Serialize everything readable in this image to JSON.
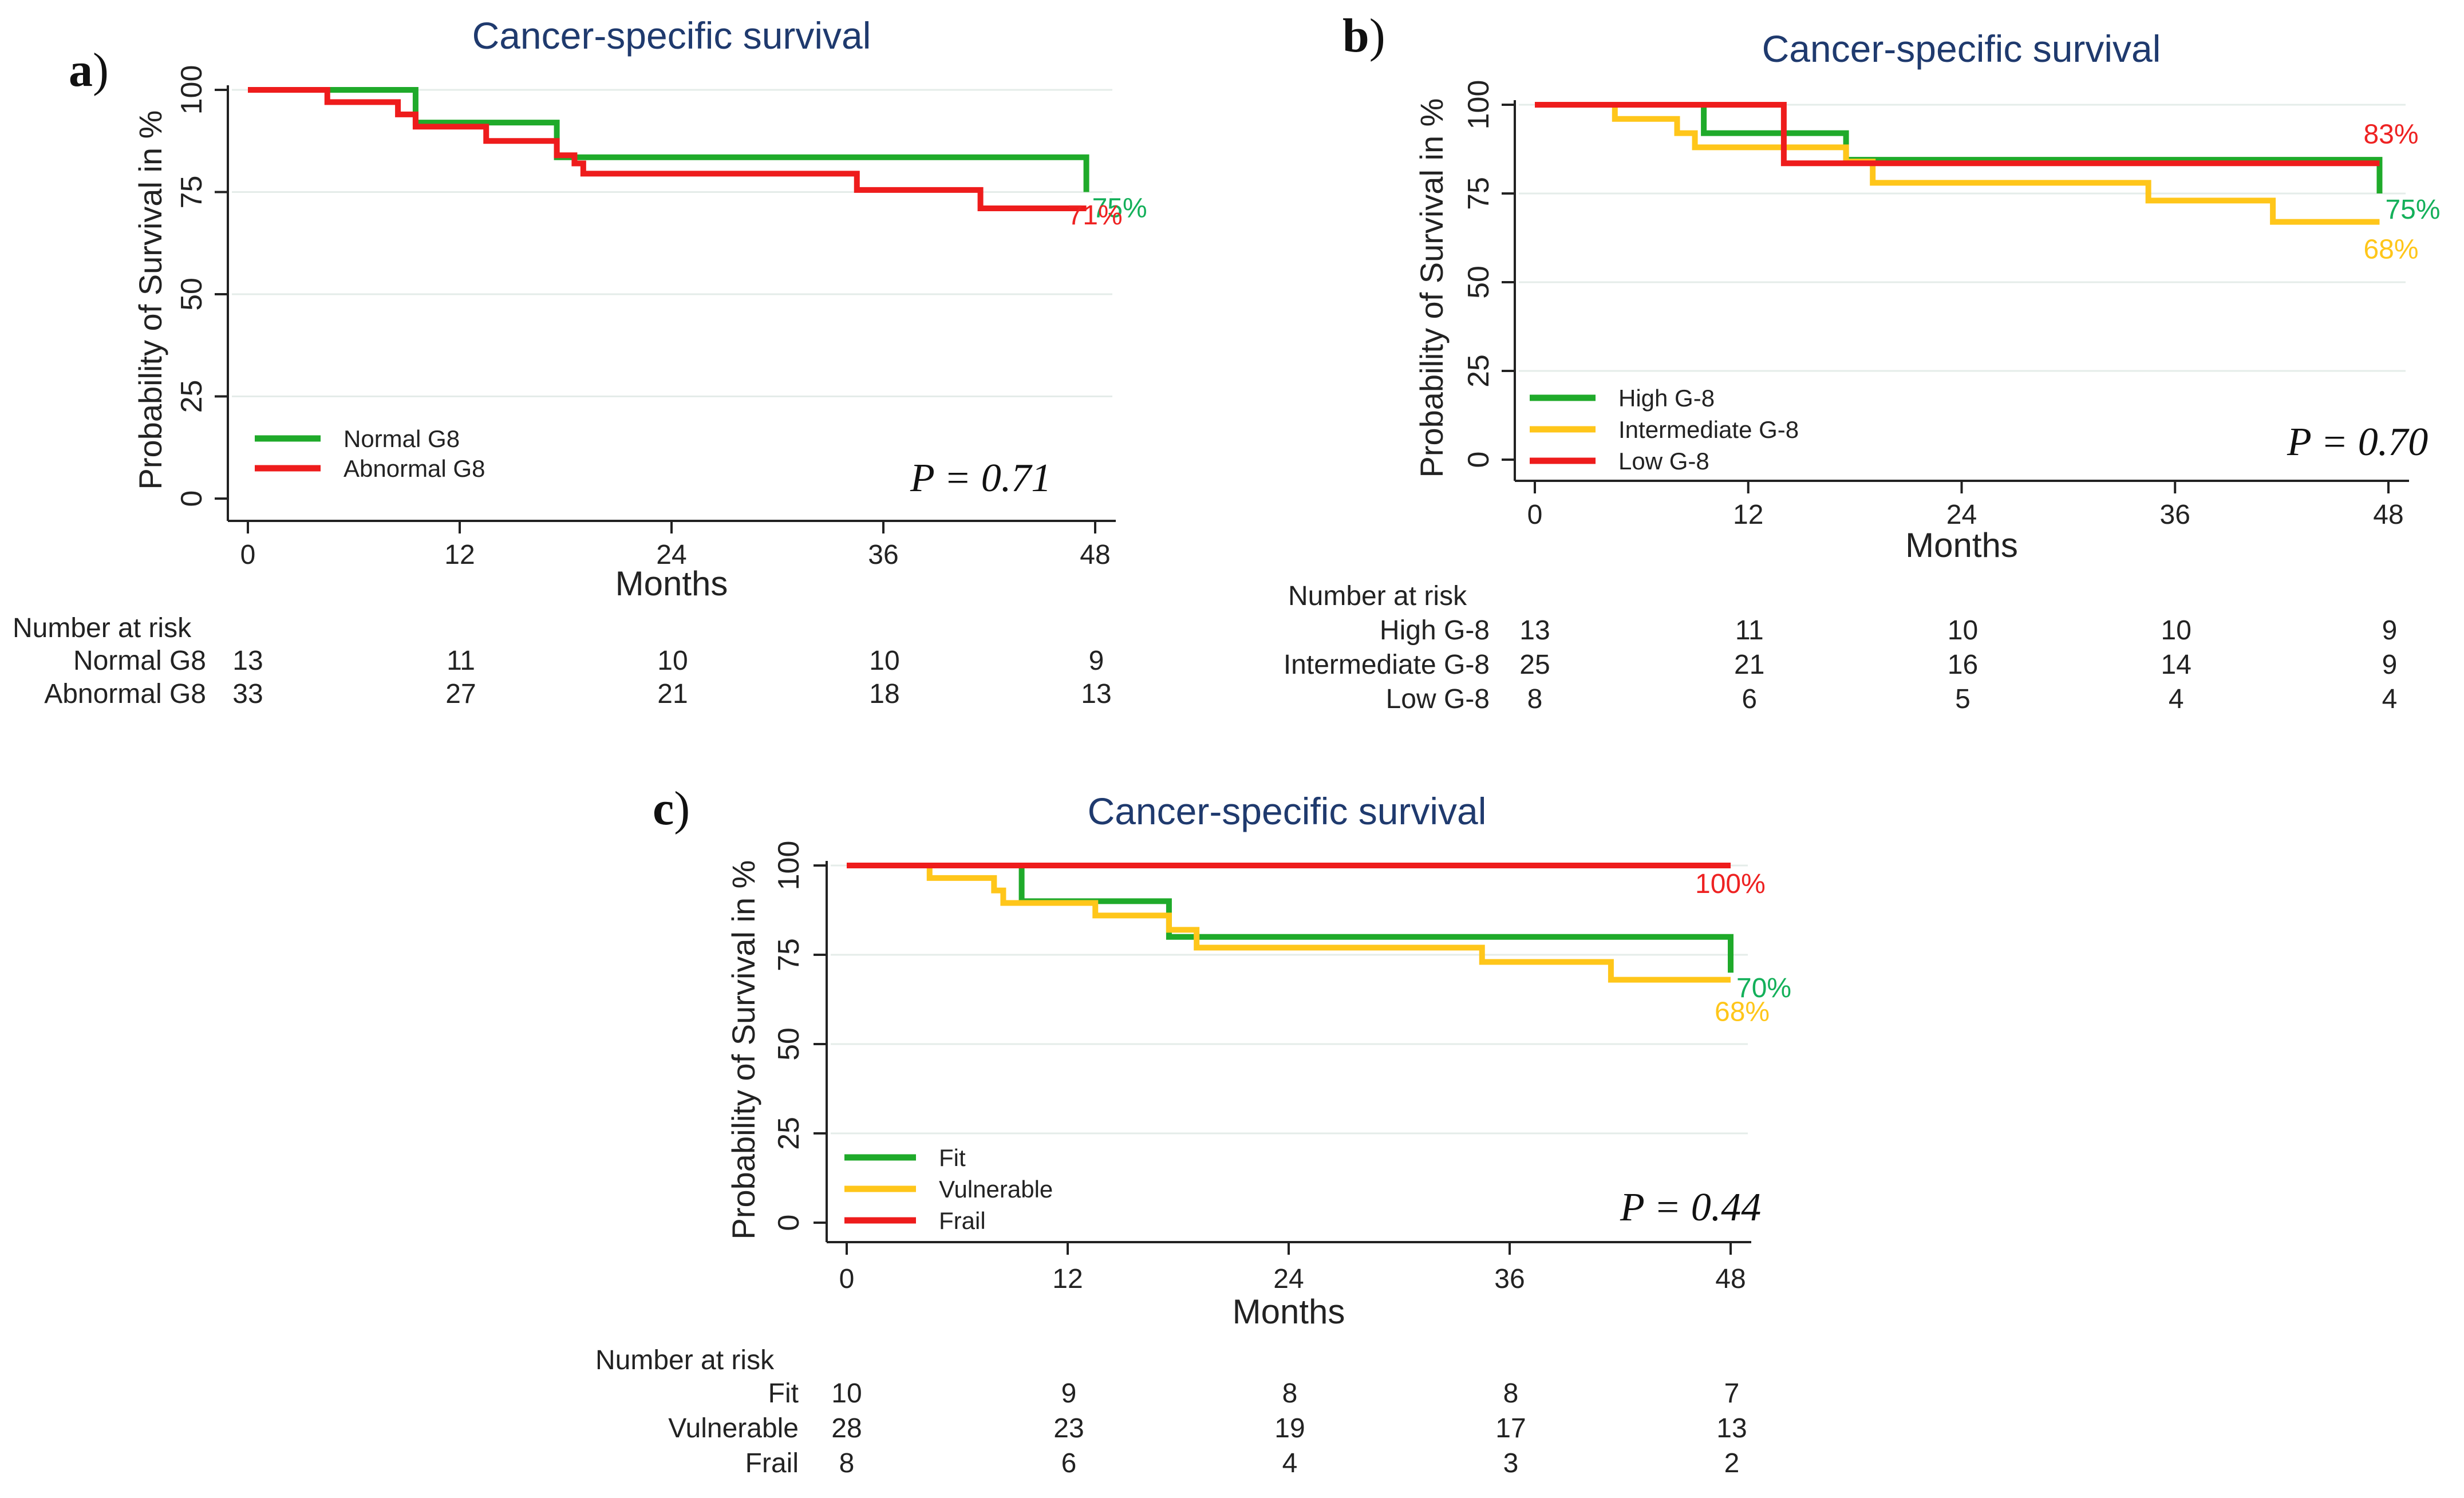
{
  "figure_title": "Cancer-specific survival",
  "chart_data": [
    {
      "id": "a",
      "panel_label": "a",
      "type": "line",
      "step": true,
      "title": "Cancer-specific survival",
      "xlabel": "Months",
      "ylabel": "Probability of Survival in %",
      "xlim": [
        0,
        48
      ],
      "ylim": [
        0,
        100
      ],
      "xticks": [
        0,
        12,
        24,
        36,
        48
      ],
      "yticks": [
        0,
        25,
        50,
        75,
        100
      ],
      "grid": "horizontal",
      "legend_position": "bottom-left",
      "p_value": "P = 0.71",
      "series": [
        {
          "name": "Normal G8",
          "color": "#1faa2a",
          "end_label": "75%",
          "end_label_color": "#14b05a",
          "x": [
            0,
            9.5,
            17.5,
            47.5,
            47.5
          ],
          "y": [
            100,
            92,
            83.5,
            83.5,
            75
          ]
        },
        {
          "name": "Abnormal G8",
          "color": "#ee1c1c",
          "end_label": "71%",
          "end_label_color": "#ee2222",
          "x": [
            0,
            4.5,
            8.5,
            9.5,
            13.5,
            17.5,
            18.5,
            19,
            34.5,
            41.5,
            47.5
          ],
          "y": [
            100,
            97,
            94,
            91,
            87.5,
            84,
            82,
            79.5,
            75.5,
            71,
            71
          ]
        }
      ],
      "risk_table": {
        "header": "Number at risk",
        "rows": [
          {
            "label": "Normal G8",
            "values": [
              "13",
              "11",
              "10",
              "10",
              "9"
            ]
          },
          {
            "label": "Abnormal G8",
            "values": [
              "33",
              "27",
              "21",
              "18",
              "13"
            ]
          }
        ]
      }
    },
    {
      "id": "b",
      "panel_label": "b",
      "type": "line",
      "step": true,
      "title": "Cancer-specific survival",
      "xlabel": "Months",
      "ylabel": "Probability of Survival in %",
      "xlim": [
        0,
        48
      ],
      "ylim": [
        0,
        100
      ],
      "xticks": [
        0,
        12,
        24,
        36,
        48
      ],
      "yticks": [
        0,
        25,
        50,
        75,
        100
      ],
      "grid": "horizontal",
      "legend_position": "bottom-left",
      "p_value": "P = 0.70",
      "series": [
        {
          "name": "High G-8",
          "color": "#1faa2a",
          "end_label": "75%",
          "end_label_color": "#14b05a",
          "x": [
            0,
            9.5,
            17.5,
            47.5,
            47.5
          ],
          "y": [
            100,
            92,
            84.5,
            84.5,
            75
          ]
        },
        {
          "name": "Intermediate G-8",
          "color": "#ffc61a",
          "end_label": "68%",
          "end_label_color": "#ffc61a",
          "x": [
            0,
            4.5,
            8,
            9,
            17.5,
            19,
            34.5,
            41.5,
            47.5
          ],
          "y": [
            100,
            96,
            92,
            88,
            84,
            78,
            73,
            67,
            67
          ]
        },
        {
          "name": "Low G-8",
          "color": "#ee1c1c",
          "end_label": "83%",
          "end_label_color": "#ee2222",
          "x": [
            0,
            14,
            47.5
          ],
          "y": [
            100,
            83.5,
            83.5
          ]
        }
      ],
      "risk_table": {
        "header": "Number at risk",
        "rows": [
          {
            "label": "High G-8",
            "values": [
              "13",
              "11",
              "10",
              "10",
              "9"
            ]
          },
          {
            "label": "Intermediate G-8",
            "values": [
              "25",
              "21",
              "16",
              "14",
              "9"
            ]
          },
          {
            "label": "Low G-8",
            "values": [
              "8",
              "6",
              "5",
              "4",
              "4"
            ]
          }
        ]
      }
    },
    {
      "id": "c",
      "panel_label": "c",
      "type": "line",
      "step": true,
      "title": "Cancer-specific survival",
      "xlabel": "Months",
      "ylabel": "Probability of Survival in %",
      "xlim": [
        0,
        48
      ],
      "ylim": [
        0,
        100
      ],
      "xticks": [
        0,
        12,
        24,
        36,
        48
      ],
      "yticks": [
        0,
        25,
        50,
        75,
        100
      ],
      "grid": "horizontal",
      "legend_position": "bottom-left",
      "p_value": "P = 0.44",
      "series": [
        {
          "name": "Fit",
          "color": "#1faa2a",
          "end_label": "70%",
          "end_label_color": "#14b05a",
          "x": [
            0,
            9.5,
            17.5,
            48,
            48
          ],
          "y": [
            100,
            90,
            80,
            80,
            70
          ]
        },
        {
          "name": "Vulnerable",
          "color": "#ffc61a",
          "end_label": "68%",
          "end_label_color": "#ffc61a",
          "x": [
            0,
            4.5,
            8,
            8.5,
            13.5,
            17.5,
            19,
            34.5,
            41.5,
            48
          ],
          "y": [
            100,
            96.5,
            93,
            89.5,
            86,
            82,
            77,
            73,
            68,
            68
          ]
        },
        {
          "name": "Frail",
          "color": "#ee1c1c",
          "end_label": "100%",
          "end_label_color": "#ee2222",
          "x": [
            0,
            48
          ],
          "y": [
            100,
            100
          ]
        }
      ],
      "risk_table": {
        "header": "Number at risk",
        "rows": [
          {
            "label": "Fit",
            "values": [
              "10",
              "9",
              "8",
              "8",
              "7"
            ]
          },
          {
            "label": "Vulnerable",
            "values": [
              "28",
              "23",
              "19",
              "17",
              "13"
            ]
          },
          {
            "label": "Frail",
            "values": [
              "8",
              "6",
              "4",
              "3",
              "2"
            ]
          }
        ]
      }
    }
  ]
}
